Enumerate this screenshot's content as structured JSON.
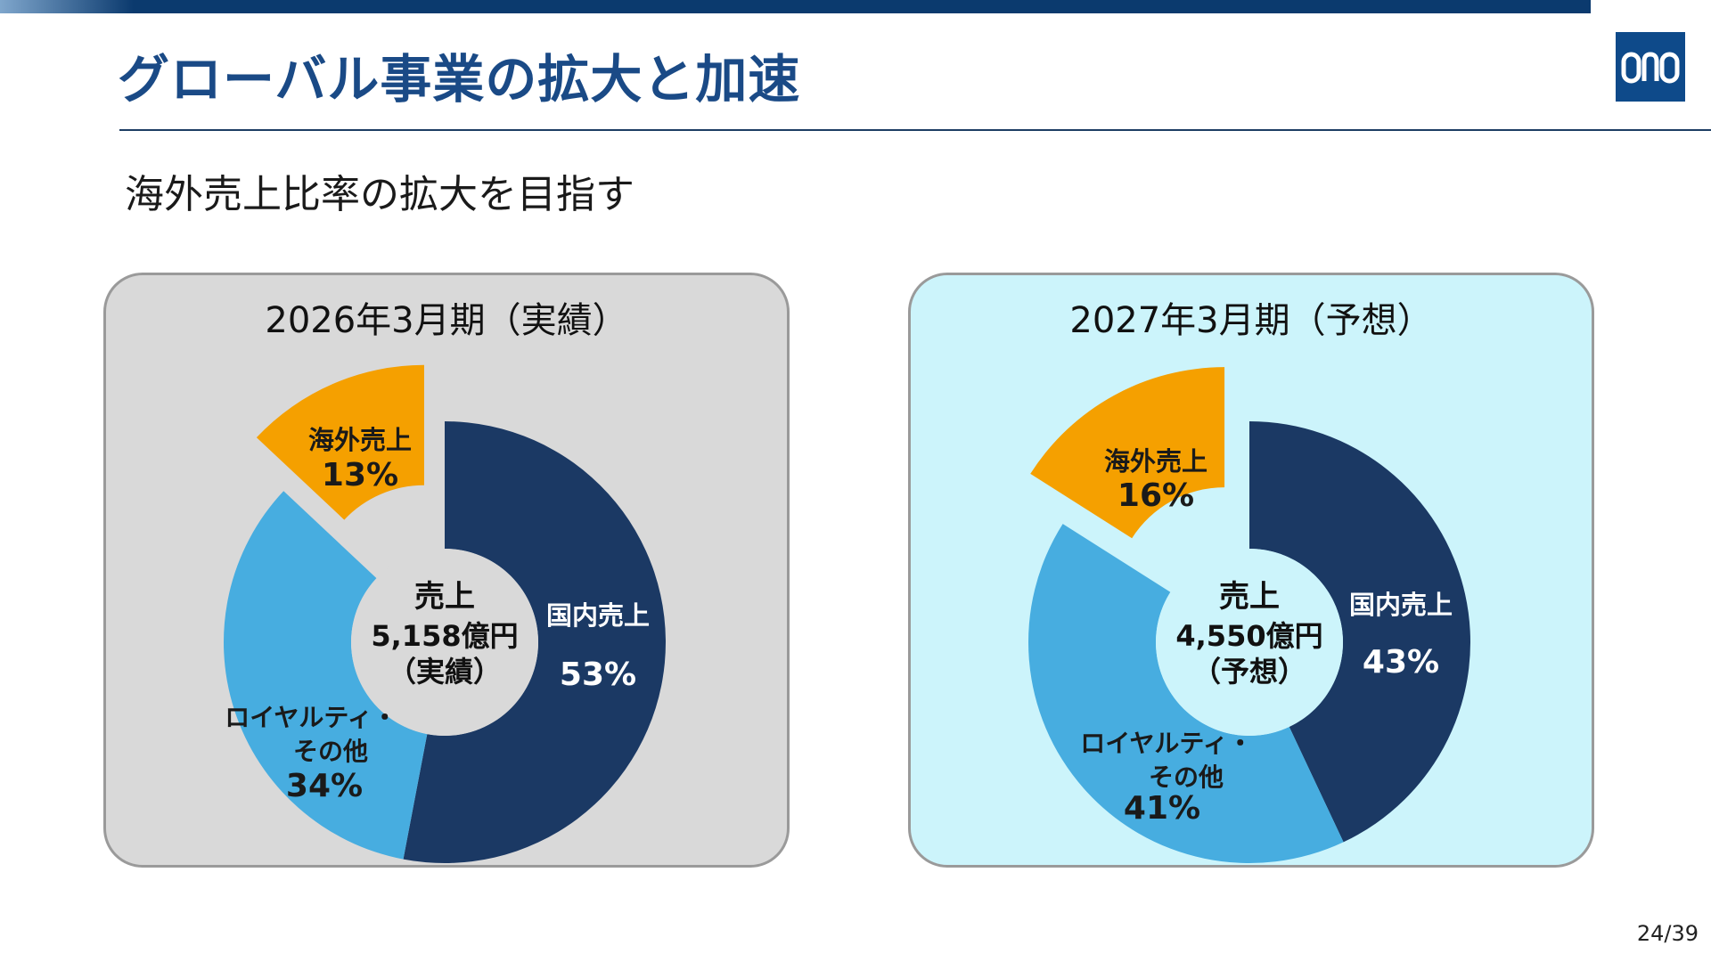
{
  "title": "グローバル事業の拡大と加速",
  "subtitle": "海外売上比率の拡大を目指す",
  "page_number": "24/39",
  "logo_text": "ono",
  "colors": {
    "domestic": "#1b3964",
    "royalty": "#47ade0",
    "overseas": "#f5a000",
    "panel_left_bg": "#d9d9d9",
    "panel_right_bg": "#ccf4fb"
  },
  "chart_data": [
    {
      "type": "pie",
      "title": "2026年3月期（実績）",
      "center": {
        "line1": "売上",
        "line2": "5,158億円",
        "line3": "（実績）"
      },
      "series": [
        {
          "name": "国内売上",
          "value": 53,
          "label": "53%"
        },
        {
          "name": "ロイヤルティ・その他",
          "value": 34,
          "label": "34%"
        },
        {
          "name": "海外売上",
          "value": 13,
          "label": "13%",
          "exploded": true
        }
      ]
    },
    {
      "type": "pie",
      "title": "2027年3月期（予想）",
      "center": {
        "line1": "売上",
        "line2": "4,550億円",
        "line3": "（予想）"
      },
      "series": [
        {
          "name": "国内売上",
          "value": 43,
          "label": "43%"
        },
        {
          "name": "ロイヤルティ・その他",
          "value": 41,
          "label": "41%"
        },
        {
          "name": "海外売上",
          "value": 16,
          "label": "16%",
          "exploded": true
        }
      ]
    }
  ]
}
